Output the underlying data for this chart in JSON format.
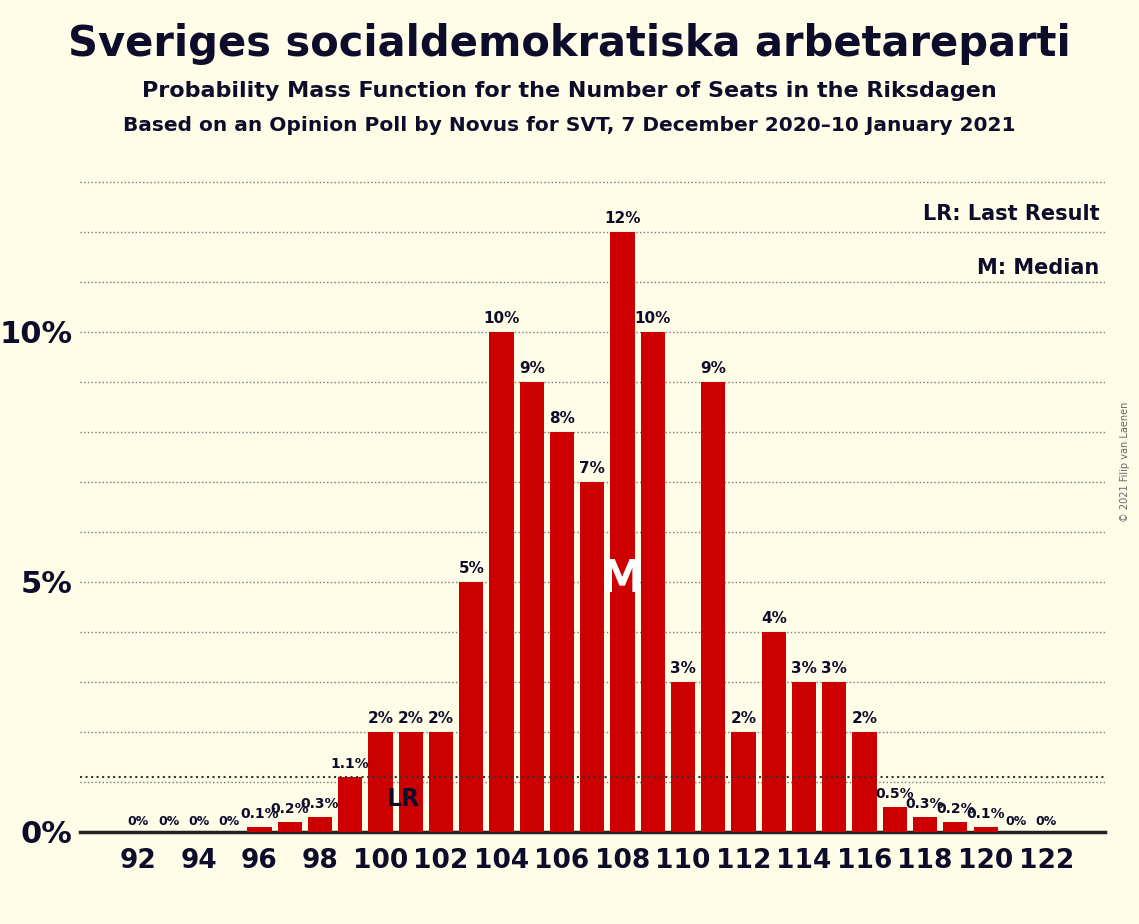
{
  "title": "Sveriges socialdemokratiska arbetareparti",
  "subtitle1": "Probability Mass Function for the Number of Seats in the Riksdagen",
  "subtitle2": "Based on an Opinion Poll by Novus for SVT, 7 December 2020–10 January 2021",
  "copyright": "© 2021 Filip van Laenen",
  "categories": [
    92,
    93,
    94,
    95,
    96,
    97,
    98,
    99,
    100,
    101,
    102,
    103,
    104,
    105,
    106,
    107,
    108,
    109,
    110,
    111,
    112,
    113,
    114,
    115,
    116,
    117,
    118,
    119,
    120,
    121,
    122
  ],
  "values": [
    0,
    0,
    0,
    0,
    0.1,
    0.2,
    0.3,
    1.1,
    2.0,
    2.0,
    2.0,
    5.0,
    10.0,
    9.0,
    8.0,
    7.0,
    12.0,
    10.0,
    3.0,
    9.0,
    2.0,
    4.0,
    3.0,
    3.0,
    2.0,
    0.5,
    0.3,
    0.2,
    0.1,
    0,
    0
  ],
  "bar_color": "#cc0000",
  "background_color": "#fffce8",
  "text_color": "#0d0d2b",
  "lr_seat": 99,
  "median_seat": 108,
  "ymax": 13.5,
  "ytick_labels_show": [
    0,
    5,
    10
  ],
  "legend_lr": "LR: Last Result",
  "legend_m": "M: Median"
}
